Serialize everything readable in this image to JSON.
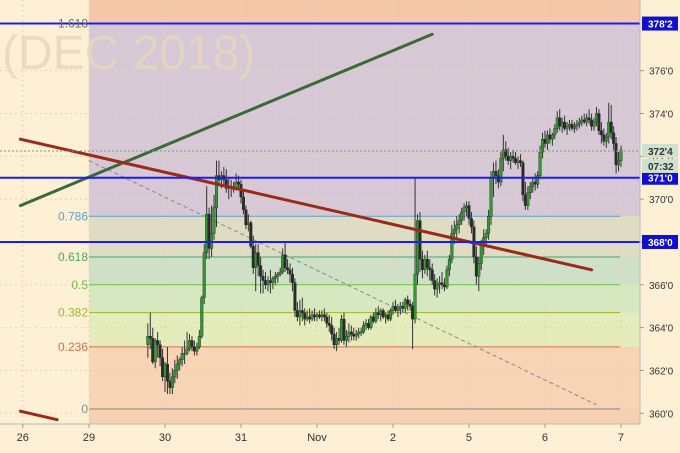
{
  "chart_data": {
    "type": "candlestick",
    "watermark": "(DEC 2018)",
    "ylim": [
      359.5,
      379.3
    ],
    "y_ticks": [
      {
        "v": 360,
        "label": "360'0"
      },
      {
        "v": 362,
        "label": "362'0"
      },
      {
        "v": 364,
        "label": "364'0"
      },
      {
        "v": 366,
        "label": "366'0"
      },
      {
        "v": 368,
        "label": "368'0"
      },
      {
        "v": 370,
        "label": "370'0"
      },
      {
        "v": 372,
        "label": "372'0"
      },
      {
        "v": 374,
        "label": "374'0"
      },
      {
        "v": 376,
        "label": "376'0"
      }
    ],
    "x_ticks": [
      {
        "i": -27,
        "label": "26"
      },
      {
        "i": 0,
        "label": "29"
      },
      {
        "i": 31,
        "label": "30"
      },
      {
        "i": 62,
        "label": "31"
      },
      {
        "i": 93,
        "label": "Nov"
      },
      {
        "i": 124,
        "label": "2"
      },
      {
        "i": 155,
        "label": "5"
      },
      {
        "i": 186,
        "label": "6"
      },
      {
        "i": 217,
        "label": "7"
      }
    ],
    "fib_levels": [
      {
        "label": "1.618",
        "v": 378.2,
        "color": "#6a6a6a"
      },
      {
        "label": "0.786",
        "v": 369.2,
        "color": "#5aa0cc"
      },
      {
        "label": "0.618",
        "v": 367.3,
        "color": "#4aa86a"
      },
      {
        "label": "0.5",
        "v": 366.0,
        "color": "#6ac040"
      },
      {
        "label": "0.382",
        "v": 364.7,
        "color": "#9cba28"
      },
      {
        "label": "0.236",
        "v": 363.1,
        "color": "#d47050"
      },
      {
        "label": "0",
        "v": 360.2,
        "color": "#888888"
      }
    ],
    "fib_band_colors": [
      "#d6c8d4",
      "#dfdcc4",
      "#cfe0c8",
      "#d6e8c0",
      "#e4ecbc",
      "#f6d4b4",
      "#f6d0b0"
    ],
    "fib_top_band_color": "#f5c6a8",
    "horizontal_levels": [
      {
        "v": 378.2,
        "label": "378'2",
        "color": "#1a1aff"
      },
      {
        "v": 371.0,
        "label": "371'0",
        "color": "#1a1aff"
      },
      {
        "v": 368.0,
        "label": "368'0",
        "color": "#1a1aff"
      }
    ],
    "last_price": {
      "v": 372.25,
      "label": "372'4",
      "countdown": "07:32"
    },
    "trend_lines": [
      {
        "color": "#3a6a3a",
        "x1": -28,
        "y1": 369.7,
        "x2": 140,
        "y2": 377.7,
        "width": 3
      },
      {
        "color": "#9a2a1a",
        "x1": -28,
        "y1": 372.8,
        "x2": 205,
        "y2": 366.7,
        "width": 3
      },
      {
        "color": "#9a2a1a",
        "x1": -28,
        "y1": 360.1,
        "x2": -13,
        "y2": 359.7,
        "width": 3
      }
    ],
    "dashed_line": {
      "color": "#888888",
      "x1": 0,
      "y1": 371.8,
      "x2": 207,
      "y2": 360.4
    },
    "shade_start_index": 0,
    "candles": [
      [
        363.2,
        364.2,
        362.6,
        363.6
      ],
      [
        363.6,
        364.7,
        363.0,
        363.5
      ],
      [
        363.5,
        364.0,
        362.3,
        362.4
      ],
      [
        362.4,
        363.5,
        362.1,
        363.4
      ],
      [
        363.4,
        363.8,
        362.6,
        363.2
      ],
      [
        363.2,
        363.4,
        362.2,
        362.6
      ],
      [
        362.6,
        363.0,
        361.5,
        361.7
      ],
      [
        361.7,
        362.4,
        361.0,
        362.3
      ],
      [
        362.3,
        363.1,
        360.9,
        361.5
      ],
      [
        361.5,
        361.9,
        360.9,
        361.2
      ],
      [
        361.2,
        362.1,
        360.9,
        361.7
      ],
      [
        361.7,
        362.5,
        361.4,
        362.0
      ],
      [
        362.0,
        362.7,
        361.6,
        362.3
      ],
      [
        362.3,
        362.6,
        362.0,
        362.5
      ],
      [
        362.5,
        363.1,
        362.2,
        362.8
      ],
      [
        362.8,
        363.4,
        362.3,
        362.8
      ],
      [
        362.8,
        363.8,
        362.7,
        363.0
      ],
      [
        363.0,
        363.7,
        362.9,
        363.4
      ],
      [
        363.4,
        363.6,
        362.9,
        363.1
      ],
      [
        363.1,
        363.4,
        362.7,
        362.9
      ],
      [
        362.9,
        363.3,
        362.7,
        363.1
      ],
      [
        363.1,
        363.9,
        363.0,
        363.6
      ],
      [
        363.6,
        365.5,
        363.5,
        365.4
      ],
      [
        365.4,
        367.9,
        365.1,
        367.5
      ],
      [
        367.5,
        370.6,
        367.2,
        369.3
      ],
      [
        369.3,
        369.6,
        367.2,
        367.7
      ],
      [
        367.7,
        369.7,
        367.3,
        368.4
      ],
      [
        368.4,
        370.2,
        368.1,
        369.6
      ],
      [
        369.6,
        371.8,
        368.7,
        371.1
      ],
      [
        371.1,
        371.8,
        370.6,
        370.9
      ],
      [
        370.9,
        371.3,
        370.5,
        371.1
      ],
      [
        371.1,
        371.5,
        370.7,
        370.9
      ],
      [
        370.9,
        371.4,
        370.3,
        370.5
      ],
      [
        370.5,
        371.0,
        370.0,
        370.6
      ],
      [
        370.6,
        370.9,
        370.1,
        370.5
      ],
      [
        370.5,
        370.8,
        370.3,
        370.5
      ],
      [
        370.5,
        371.2,
        370.4,
        370.8
      ],
      [
        370.8,
        371.1,
        370.4,
        370.7
      ],
      [
        370.7,
        370.9,
        369.8,
        370.1
      ],
      [
        370.1,
        370.4,
        369.3,
        369.5
      ],
      [
        369.5,
        369.7,
        368.6,
        368.8
      ],
      [
        368.8,
        369.3,
        368.5,
        368.9
      ],
      [
        368.9,
        369.0,
        367.7,
        367.8
      ],
      [
        367.8,
        368.3,
        366.5,
        366.8
      ],
      [
        366.8,
        367.9,
        365.7,
        367.5
      ],
      [
        367.5,
        367.9,
        366.4,
        366.9
      ],
      [
        366.9,
        367.3,
        365.6,
        366.4
      ],
      [
        366.4,
        366.7,
        365.6,
        366.2
      ],
      [
        366.2,
        366.6,
        365.8,
        366.0
      ],
      [
        366.0,
        366.4,
        365.7,
        366.2
      ],
      [
        366.2,
        366.7,
        365.6,
        366.1
      ],
      [
        366.1,
        366.4,
        365.8,
        366.3
      ],
      [
        366.3,
        366.6,
        366.0,
        366.4
      ],
      [
        366.4,
        366.6,
        366.1,
        366.5
      ],
      [
        366.5,
        366.8,
        366.4,
        366.6
      ],
      [
        366.6,
        367.7,
        366.5,
        367.4
      ],
      [
        367.4,
        368.0,
        366.6,
        366.8
      ],
      [
        366.8,
        367.2,
        366.5,
        366.7
      ],
      [
        366.7,
        367.0,
        366.1,
        366.5
      ],
      [
        366.5,
        366.8,
        365.7,
        366.1
      ],
      [
        366.1,
        366.3,
        364.5,
        364.8
      ],
      [
        364.8,
        365.2,
        364.3,
        364.5
      ],
      [
        364.5,
        365.3,
        364.1,
        364.8
      ],
      [
        364.8,
        365.4,
        364.3,
        364.7
      ],
      [
        364.7,
        364.9,
        364.1,
        364.4
      ],
      [
        364.4,
        364.8,
        364.3,
        364.5
      ],
      [
        364.5,
        364.9,
        364.2,
        364.4
      ],
      [
        364.4,
        364.8,
        364.3,
        364.6
      ],
      [
        364.6,
        364.9,
        364.3,
        364.5
      ],
      [
        364.5,
        364.7,
        364.3,
        364.6
      ],
      [
        364.6,
        364.8,
        364.4,
        364.5
      ],
      [
        364.5,
        364.8,
        364.3,
        364.6
      ],
      [
        364.6,
        364.9,
        364.3,
        364.5
      ],
      [
        364.5,
        364.7,
        364.0,
        364.2
      ],
      [
        364.2,
        364.6,
        363.8,
        364.1
      ],
      [
        364.1,
        364.5,
        363.4,
        363.7
      ],
      [
        363.7,
        364.0,
        363.0,
        363.2
      ],
      [
        363.2,
        363.8,
        362.9,
        363.5
      ],
      [
        363.5,
        364.0,
        363.2,
        363.4
      ],
      [
        363.4,
        364.6,
        363.3,
        364.4
      ],
      [
        364.4,
        364.7,
        363.2,
        363.4
      ],
      [
        363.4,
        363.9,
        363.1,
        363.6
      ],
      [
        363.6,
        364.2,
        363.3,
        363.8
      ],
      [
        363.8,
        364.1,
        363.4,
        363.7
      ],
      [
        363.7,
        364.0,
        363.4,
        363.6
      ],
      [
        363.6,
        363.9,
        363.4,
        363.7
      ],
      [
        363.7,
        364.0,
        363.5,
        363.8
      ],
      [
        363.8,
        364.0,
        363.6,
        363.8
      ],
      [
        363.8,
        364.3,
        363.7,
        364.1
      ],
      [
        364.1,
        364.4,
        363.9,
        364.2
      ],
      [
        364.2,
        364.4,
        363.9,
        364.0
      ],
      [
        364.0,
        364.6,
        363.9,
        364.5
      ],
      [
        364.5,
        364.7,
        364.2,
        364.3
      ],
      [
        364.3,
        364.9,
        364.2,
        364.7
      ],
      [
        364.7,
        365.0,
        364.4,
        364.6
      ],
      [
        364.6,
        364.9,
        364.3,
        364.8
      ],
      [
        364.8,
        364.9,
        364.4,
        364.5
      ],
      [
        364.5,
        364.7,
        364.2,
        364.6
      ],
      [
        364.6,
        364.8,
        364.3,
        364.4
      ],
      [
        364.4,
        364.9,
        364.3,
        364.8
      ],
      [
        364.8,
        365.2,
        364.6,
        365.0
      ],
      [
        365.0,
        365.3,
        364.7,
        364.8
      ],
      [
        364.8,
        365.1,
        364.5,
        364.9
      ],
      [
        364.9,
        365.2,
        364.6,
        365.0
      ],
      [
        365.0,
        365.2,
        364.7,
        364.9
      ],
      [
        364.9,
        365.4,
        364.7,
        365.3
      ],
      [
        365.3,
        365.5,
        364.8,
        365.1
      ],
      [
        365.1,
        365.3,
        364.8,
        365.0
      ],
      [
        365.0,
        365.2,
        363.0,
        364.4
      ],
      [
        364.4,
        371.0,
        364.2,
        366.5
      ],
      [
        366.5,
        369.3,
        366.0,
        369.0
      ],
      [
        369.0,
        369.4,
        366.6,
        367.2
      ],
      [
        367.2,
        367.6,
        366.3,
        366.7
      ],
      [
        366.7,
        367.4,
        366.5,
        367.2
      ],
      [
        367.2,
        367.6,
        366.4,
        366.8
      ],
      [
        366.8,
        367.2,
        366.2,
        366.7
      ],
      [
        366.7,
        367.0,
        366.0,
        366.2
      ],
      [
        366.2,
        366.5,
        365.5,
        365.8
      ],
      [
        365.8,
        366.3,
        365.4,
        366.0
      ],
      [
        366.0,
        366.4,
        365.6,
        366.1
      ],
      [
        366.1,
        366.6,
        365.8,
        366.0
      ],
      [
        366.0,
        366.3,
        365.7,
        365.9
      ],
      [
        365.9,
        366.9,
        365.8,
        366.7
      ],
      [
        366.7,
        367.4,
        366.4,
        367.2
      ],
      [
        367.2,
        368.8,
        367.0,
        368.4
      ],
      [
        368.4,
        369.0,
        367.9,
        368.6
      ],
      [
        368.6,
        369.2,
        368.2,
        368.8
      ],
      [
        368.8,
        369.3,
        368.4,
        369.0
      ],
      [
        369.0,
        369.6,
        368.8,
        369.4
      ],
      [
        369.4,
        369.8,
        369.0,
        369.6
      ],
      [
        369.6,
        369.9,
        369.2,
        369.7
      ],
      [
        369.7,
        369.9,
        368.8,
        369.1
      ],
      [
        369.1,
        369.4,
        368.4,
        368.7
      ],
      [
        368.7,
        369.0,
        367.0,
        367.3
      ],
      [
        367.3,
        367.8,
        366.0,
        366.4
      ],
      [
        366.4,
        367.3,
        365.7,
        367.0
      ],
      [
        367.0,
        368.1,
        366.7,
        367.9
      ],
      [
        367.9,
        368.6,
        367.4,
        368.2
      ],
      [
        368.2,
        368.6,
        367.8,
        368.4
      ],
      [
        368.4,
        369.5,
        368.1,
        369.2
      ],
      [
        369.2,
        371.3,
        368.8,
        371.0
      ],
      [
        371.0,
        371.7,
        370.1,
        371.3
      ],
      [
        371.3,
        371.8,
        370.7,
        371.1
      ],
      [
        371.1,
        371.4,
        370.5,
        370.8
      ],
      [
        370.8,
        372.2,
        370.6,
        371.9
      ],
      [
        371.9,
        373.0,
        371.3,
        372.3
      ],
      [
        372.3,
        372.7,
        371.8,
        372.0
      ],
      [
        372.0,
        372.4,
        371.6,
        371.8
      ],
      [
        371.8,
        372.2,
        371.4,
        372.0
      ],
      [
        372.0,
        372.3,
        371.7,
        371.9
      ],
      [
        371.9,
        372.2,
        371.6,
        371.7
      ],
      [
        371.7,
        372.0,
        371.4,
        371.8
      ],
      [
        371.8,
        372.1,
        371.5,
        371.7
      ],
      [
        371.7,
        371.8,
        369.9,
        370.2
      ],
      [
        370.2,
        370.8,
        369.5,
        369.7
      ],
      [
        369.7,
        370.6,
        369.5,
        370.3
      ],
      [
        370.3,
        370.8,
        370.0,
        370.6
      ],
      [
        370.6,
        371.0,
        370.3,
        370.8
      ],
      [
        370.8,
        371.2,
        370.4,
        370.7
      ],
      [
        370.7,
        371.3,
        370.5,
        371.1
      ],
      [
        371.1,
        372.5,
        371.0,
        372.2
      ],
      [
        372.2,
        373.1,
        371.9,
        372.8
      ],
      [
        372.8,
        373.2,
        372.4,
        372.6
      ],
      [
        372.6,
        373.2,
        372.3,
        373.0
      ],
      [
        373.0,
        373.3,
        372.6,
        372.8
      ],
      [
        372.8,
        373.1,
        372.5,
        373.0
      ],
      [
        373.0,
        373.5,
        372.8,
        373.3
      ],
      [
        373.3,
        374.1,
        373.1,
        373.8
      ],
      [
        373.8,
        374.2,
        373.2,
        373.4
      ],
      [
        373.4,
        373.8,
        373.1,
        373.6
      ],
      [
        373.6,
        373.9,
        373.2,
        373.3
      ],
      [
        373.3,
        373.6,
        373.0,
        373.4
      ],
      [
        373.4,
        373.7,
        373.2,
        373.5
      ],
      [
        373.5,
        373.7,
        373.2,
        373.3
      ],
      [
        373.3,
        373.6,
        373.1,
        373.4
      ],
      [
        373.4,
        373.7,
        373.2,
        373.5
      ],
      [
        373.5,
        373.8,
        373.3,
        373.6
      ],
      [
        373.6,
        373.9,
        373.4,
        373.7
      ],
      [
        373.7,
        374.0,
        373.5,
        373.6
      ],
      [
        373.6,
        374.0,
        373.4,
        373.8
      ],
      [
        373.8,
        374.2,
        373.5,
        373.7
      ],
      [
        373.7,
        374.0,
        373.2,
        373.4
      ],
      [
        373.4,
        373.8,
        373.2,
        373.6
      ],
      [
        373.6,
        374.3,
        373.4,
        374.0
      ],
      [
        374.0,
        374.2,
        373.0,
        373.2
      ],
      [
        373.2,
        373.6,
        372.6,
        373.0
      ],
      [
        373.0,
        373.3,
        372.5,
        372.7
      ],
      [
        372.7,
        373.1,
        372.4,
        372.9
      ],
      [
        372.9,
        374.5,
        372.6,
        373.6
      ],
      [
        373.6,
        374.4,
        372.8,
        373.1
      ],
      [
        373.1,
        373.4,
        372.3,
        372.6
      ],
      [
        372.6,
        372.9,
        371.2,
        371.6
      ],
      [
        371.6,
        372.2,
        371.3,
        371.8
      ],
      [
        371.8,
        372.5,
        371.5,
        372.3
      ]
    ]
  }
}
